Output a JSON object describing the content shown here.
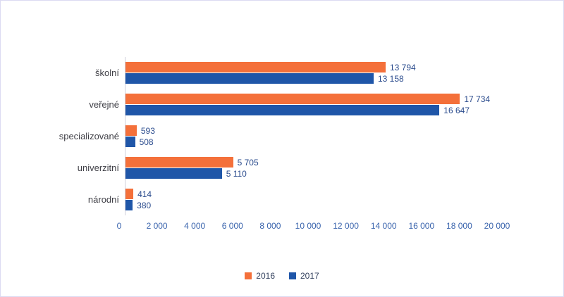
{
  "chart_data": {
    "type": "bar",
    "orientation": "horizontal",
    "title": "",
    "categories": [
      "školní",
      "veřejné",
      "specializované",
      "univerzitní",
      "národní"
    ],
    "series": [
      {
        "name": "2016",
        "color": "#f4703a",
        "values": [
          13794,
          17734,
          593,
          5705,
          414
        ]
      },
      {
        "name": "2017",
        "color": "#1f56a8",
        "values": [
          13158,
          16647,
          508,
          5110,
          380
        ]
      }
    ],
    "xlim": [
      0,
      20000
    ],
    "x_ticks": [
      0,
      2000,
      4000,
      6000,
      8000,
      10000,
      12000,
      14000,
      16000,
      18000,
      20000
    ],
    "grid": false,
    "value_labels": true,
    "legend_position": "bottom",
    "number_format": "space-thousands"
  },
  "colors": {
    "frame_border": "#dcdbf2",
    "axis_line": "#cfcfda",
    "tick_text": "#3a64ad",
    "value_text": "#2a4b8d",
    "category_text": "#3f3f46",
    "legend_text": "#33415e",
    "series_2016": "#f4703a",
    "series_2017": "#1f56a8"
  }
}
